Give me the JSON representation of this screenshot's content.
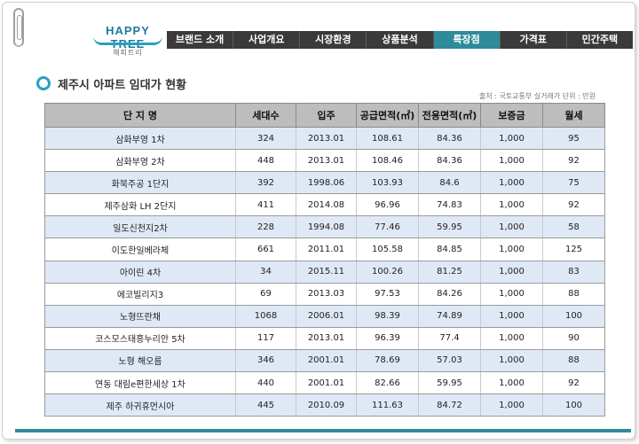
{
  "logo": {
    "text": "HAPPY TREE",
    "sub": "해피트리"
  },
  "nav": {
    "items": [
      {
        "label": "브랜드 소개",
        "active": false
      },
      {
        "label": "사업개요",
        "active": false
      },
      {
        "label": "시장환경",
        "active": false
      },
      {
        "label": "상품분석",
        "active": false
      },
      {
        "label": "특장점",
        "active": true
      },
      {
        "label": "가격표",
        "active": false
      },
      {
        "label": "민간주택",
        "active": false
      }
    ]
  },
  "section": {
    "title": "제주시 아파트 임대가 현황",
    "source": "출처 : 국토교통부 실거래가   단위 : 만원"
  },
  "table": {
    "headers": [
      "단 지 명",
      "세대수",
      "입주",
      "공급면적(㎡)",
      "전용면적(㎡)",
      "보증금",
      "월세"
    ],
    "rows": [
      [
        "삼화부영 1차",
        "324",
        "2013.01",
        "108.61",
        "84.36",
        "1,000",
        "95"
      ],
      [
        "삼화부영 2차",
        "448",
        "2013.01",
        "108.46",
        "84.36",
        "1,000",
        "92"
      ],
      [
        "화북주공 1단지",
        "392",
        "1998.06",
        "103.93",
        "84.6",
        "1,000",
        "75"
      ],
      [
        "제주삼화 LH 2단지",
        "411",
        "2014.08",
        "96.96",
        "74.83",
        "1,000",
        "92"
      ],
      [
        "일도신천지2차",
        "228",
        "1994.08",
        "77.46",
        "59.95",
        "1,000",
        "58"
      ],
      [
        "이도한일베라체",
        "661",
        "2011.01",
        "105.58",
        "84.85",
        "1,000",
        "125"
      ],
      [
        "아이린 4차",
        "34",
        "2015.11",
        "100.26",
        "81.25",
        "1,000",
        "83"
      ],
      [
        "에코빌리지3",
        "69",
        "2013.03",
        "97.53",
        "84.26",
        "1,000",
        "88"
      ],
      [
        "노형뜨란채",
        "1068",
        "2006.01",
        "98.39",
        "74.89",
        "1,000",
        "100"
      ],
      [
        "코스모스태흥누리안 5차",
        "117",
        "2013.01",
        "96.39",
        "77.4",
        "1,000",
        "90"
      ],
      [
        "노형 해오름",
        "346",
        "2001.01",
        "78.69",
        "57.03",
        "1,000",
        "88"
      ],
      [
        "연동 대림e편한세상 1차",
        "440",
        "2001.01",
        "82.66",
        "59.95",
        "1,000",
        "92"
      ],
      [
        "제주 하귀휴먼시아",
        "445",
        "2010.09",
        "111.63",
        "84.72",
        "1,000",
        "100"
      ]
    ]
  },
  "colors": {
    "nav_bg": "#3a3a3a",
    "nav_active": "#2f8a99",
    "header_bg": "#bdbdbd",
    "row_alt": "#dfe9f6",
    "accent": "#2a9fc2"
  }
}
